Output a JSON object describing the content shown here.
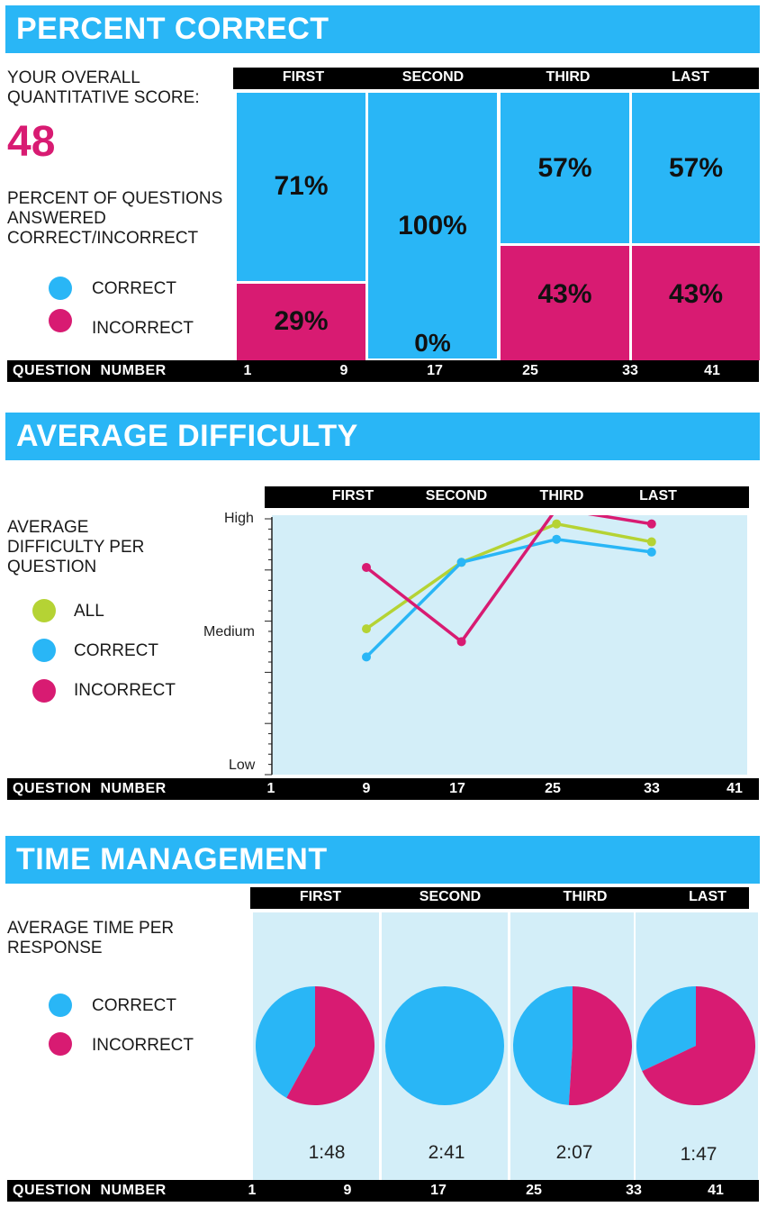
{
  "colors": {
    "correct": "#29b6f6",
    "incorrect": "#d81b72",
    "all": "#b5d334",
    "banner": "#29b6f6"
  },
  "percent_correct": {
    "title": "PERCENT CORRECT",
    "score_label_line1": "YOUR OVERALL",
    "score_label_line2": "QUANTITATIVE SCORE:",
    "score": "48",
    "desc_line1": "PERCENT OF QUESTIONS",
    "desc_line2": "ANSWERED",
    "desc_line3": "CORRECT/INCORRECT",
    "legend": {
      "correct": "CORRECT",
      "incorrect": "INCORRECT"
    },
    "columns": [
      "FIRST",
      "SECOND",
      "THIRD",
      "LAST"
    ],
    "correct_labels": [
      "71%",
      "100%",
      "57%",
      "57%"
    ],
    "incorrect_labels": [
      "29%",
      "0%",
      "43%",
      "43%"
    ]
  },
  "average_difficulty": {
    "title": "AVERAGE DIFFICULTY",
    "desc_line1": "AVERAGE",
    "desc_line2": "DIFFICULTY PER",
    "desc_line3": "QUESTION",
    "legend": {
      "all": "ALL",
      "correct": "CORRECT",
      "incorrect": "INCORRECT"
    },
    "columns": [
      "FIRST",
      "SECOND",
      "THIRD",
      "LAST"
    ],
    "y_high": "High",
    "y_medium": "Medium",
    "y_low": "Low"
  },
  "time_management": {
    "title": "TIME MANAGEMENT",
    "desc_line1": "AVERAGE TIME PER",
    "desc_line2": "RESPONSE",
    "legend": {
      "correct": "CORRECT",
      "incorrect": "INCORRECT"
    },
    "columns": [
      "FIRST",
      "SECOND",
      "THIRD",
      "LAST"
    ],
    "times": [
      "1:48",
      "2:41",
      "2:07",
      "1:47"
    ]
  },
  "question_axis": {
    "label": "QUESTION NUMBER",
    "ticks": [
      "1",
      "9",
      "17",
      "25",
      "33",
      "41"
    ]
  },
  "chart_data": [
    {
      "type": "bar",
      "title": "PERCENT CORRECT",
      "categories": [
        "FIRST",
        "SECOND",
        "THIRD",
        "LAST"
      ],
      "series": [
        {
          "name": "CORRECT",
          "values": [
            71,
            100,
            57,
            57
          ]
        },
        {
          "name": "INCORRECT",
          "values": [
            29,
            0,
            43,
            43
          ]
        }
      ],
      "xlabel": "QUESTION NUMBER",
      "ylim": [
        0,
        100
      ]
    },
    {
      "type": "line",
      "title": "AVERAGE DIFFICULTY",
      "x": [
        9,
        17,
        25,
        33
      ],
      "series": [
        {
          "name": "ALL",
          "values": [
            0.57,
            0.83,
            0.98,
            0.91
          ]
        },
        {
          "name": "CORRECT",
          "values": [
            0.46,
            0.83,
            0.92,
            0.87
          ]
        },
        {
          "name": "INCORRECT",
          "values": [
            0.81,
            0.52,
            1.04,
            0.98
          ]
        }
      ],
      "yticks": [
        "Low",
        "Medium",
        "High"
      ],
      "ylim": [
        0,
        1
      ],
      "xlim": [
        1,
        41
      ],
      "xlabel": "QUESTION NUMBER"
    },
    {
      "type": "pie",
      "title": "TIME MANAGEMENT",
      "categories": [
        "FIRST",
        "SECOND",
        "THIRD",
        "LAST"
      ],
      "series": [
        {
          "name": "CORRECT",
          "values": [
            42,
            100,
            49,
            32
          ]
        },
        {
          "name": "INCORRECT",
          "values": [
            58,
            0,
            51,
            68
          ]
        }
      ],
      "labels": [
        "1:48",
        "2:41",
        "2:07",
        "1:47"
      ]
    }
  ]
}
